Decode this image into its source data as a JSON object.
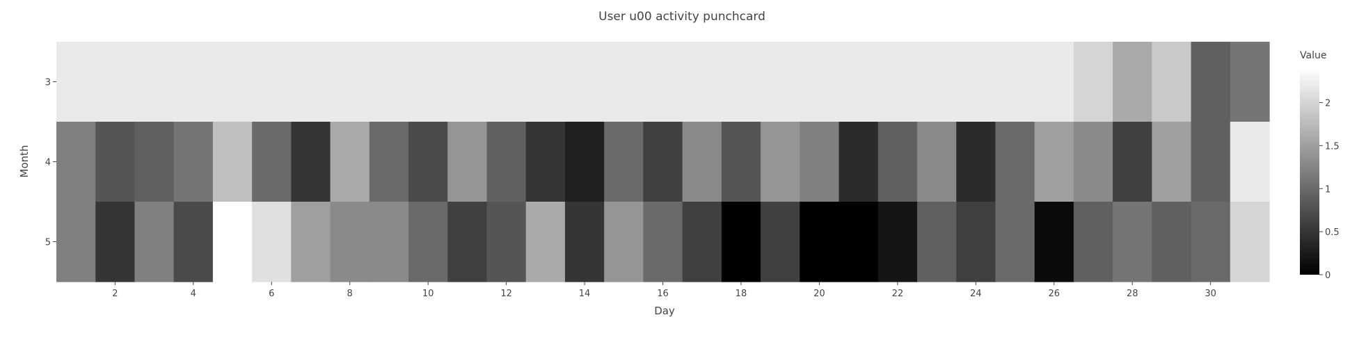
{
  "chart_data": {
    "type": "heatmap",
    "title": "User u00 activity punchcard",
    "xlabel": "Day",
    "ylabel": "Month",
    "x": [
      1,
      2,
      3,
      4,
      5,
      6,
      7,
      8,
      9,
      10,
      11,
      12,
      13,
      14,
      15,
      16,
      17,
      18,
      19,
      20,
      21,
      22,
      23,
      24,
      25,
      26,
      27,
      28,
      29,
      30,
      31
    ],
    "y": [
      3,
      4,
      5
    ],
    "x_ticks": [
      2,
      4,
      6,
      8,
      10,
      12,
      14,
      16,
      18,
      20,
      22,
      24,
      26,
      28,
      30
    ],
    "y_ticks": [
      3,
      4,
      5
    ],
    "z": [
      [
        2.2,
        2.2,
        2.2,
        2.2,
        2.2,
        2.2,
        2.2,
        2.2,
        2.2,
        2.2,
        2.2,
        2.2,
        2.2,
        2.2,
        2.2,
        2.2,
        2.2,
        2.2,
        2.2,
        2.2,
        2.2,
        2.2,
        2.2,
        2.2,
        2.2,
        2.2,
        2.0,
        1.6,
        1.9,
        0.9,
        1.1
      ],
      [
        1.2,
        0.8,
        0.9,
        1.1,
        1.8,
        1.0,
        0.5,
        1.6,
        1.0,
        0.7,
        1.4,
        0.9,
        0.5,
        0.3,
        1.0,
        0.6,
        1.3,
        0.8,
        1.4,
        1.2,
        0.4,
        0.9,
        1.3,
        0.4,
        1.0,
        1.5,
        1.3,
        0.6,
        1.5,
        0.9,
        2.2
      ],
      [
        1.2,
        0.5,
        1.2,
        0.7,
        2.4,
        2.1,
        1.5,
        1.3,
        1.3,
        1.0,
        0.6,
        0.8,
        1.6,
        0.5,
        1.4,
        1.0,
        0.6,
        0.0,
        0.6,
        0.0,
        0.0,
        0.2,
        0.9,
        0.6,
        1.0,
        0.1,
        0.9,
        1.1,
        0.9,
        1.0,
        2.0
      ]
    ],
    "colorscale": [
      "#000000",
      "#ffffff"
    ],
    "zlim": [
      0,
      2.4
    ],
    "colorbar": {
      "title": "Value",
      "ticks": [
        0,
        0.5,
        1,
        1.5,
        2
      ],
      "tick_labels": [
        "0",
        "0.5",
        "1",
        "1.5",
        "2"
      ]
    },
    "grid": false
  }
}
